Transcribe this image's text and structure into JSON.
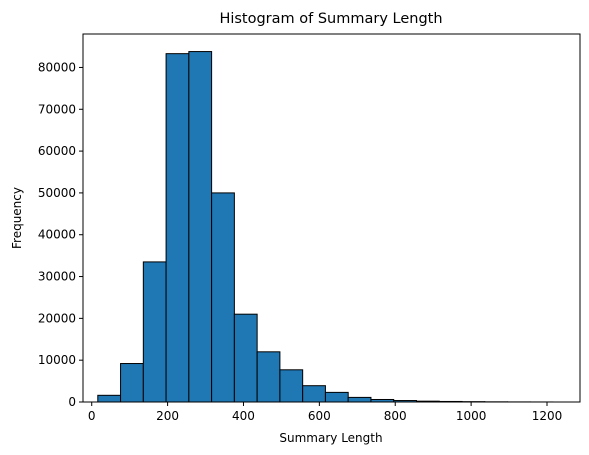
{
  "chart_data": {
    "type": "bar",
    "title": "Histogram of Summary Length",
    "xlabel": "Summary Length",
    "ylabel": "Frequency",
    "xlim": [
      -23,
      1287
    ],
    "ylim": [
      0,
      88000
    ],
    "x_ticks": [
      0,
      200,
      400,
      600,
      800,
      1000,
      1200
    ],
    "y_ticks": [
      0,
      10000,
      20000,
      30000,
      40000,
      50000,
      60000,
      70000,
      80000
    ],
    "bin_edges": [
      16,
      76,
      136,
      196,
      256,
      316,
      376,
      436,
      496,
      556,
      616,
      676,
      736,
      796,
      856,
      916,
      976,
      1036,
      1096,
      1156,
      1216
    ],
    "values": [
      1600,
      9200,
      33500,
      83300,
      83800,
      50000,
      21000,
      12000,
      7700,
      3900,
      2300,
      1100,
      600,
      350,
      200,
      130,
      80,
      40,
      20,
      10
    ],
    "bar_color": "#1f77b4",
    "edge_color": "#000000",
    "grid": false
  }
}
